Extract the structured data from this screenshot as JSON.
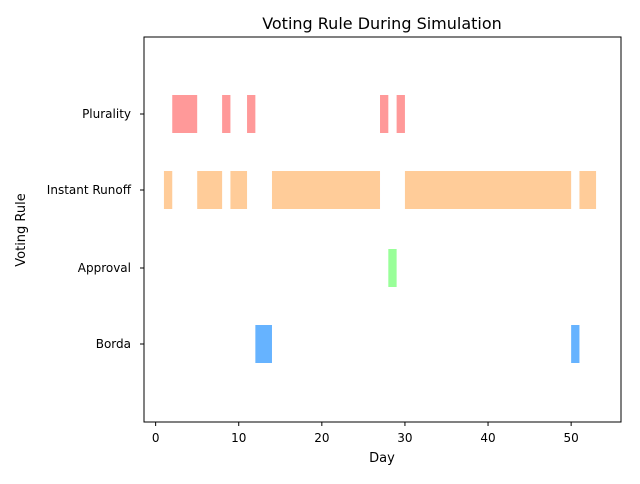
{
  "chart_data": {
    "type": "bar",
    "orientation": "horizontal-ranges",
    "title": "Voting Rule During Simulation",
    "xlabel": "Day",
    "ylabel": "Voting Rule",
    "xlim": [
      -1.4,
      56.0
    ],
    "xticks": [
      0,
      10,
      20,
      30,
      40,
      50
    ],
    "categories": [
      "Plurality",
      "Instant Runoff",
      "Approval",
      "Borda"
    ],
    "grid": false,
    "legend": "none",
    "series": [
      {
        "category": "Plurality",
        "color": "#ff9999",
        "ranges": [
          [
            2,
            5
          ],
          [
            8,
            9
          ],
          [
            11,
            12
          ],
          [
            27,
            28
          ],
          [
            29,
            30
          ]
        ]
      },
      {
        "category": "Instant Runoff",
        "color": "#ffcc99",
        "ranges": [
          [
            1,
            2
          ],
          [
            5,
            8
          ],
          [
            9,
            11
          ],
          [
            14,
            27
          ],
          [
            30,
            50
          ],
          [
            51,
            53
          ]
        ]
      },
      {
        "category": "Approval",
        "color": "#99ff99",
        "ranges": [
          [
            28,
            29
          ]
        ]
      },
      {
        "category": "Borda",
        "color": "#66b3ff",
        "ranges": [
          [
            12,
            14
          ],
          [
            50,
            51
          ]
        ]
      }
    ]
  }
}
